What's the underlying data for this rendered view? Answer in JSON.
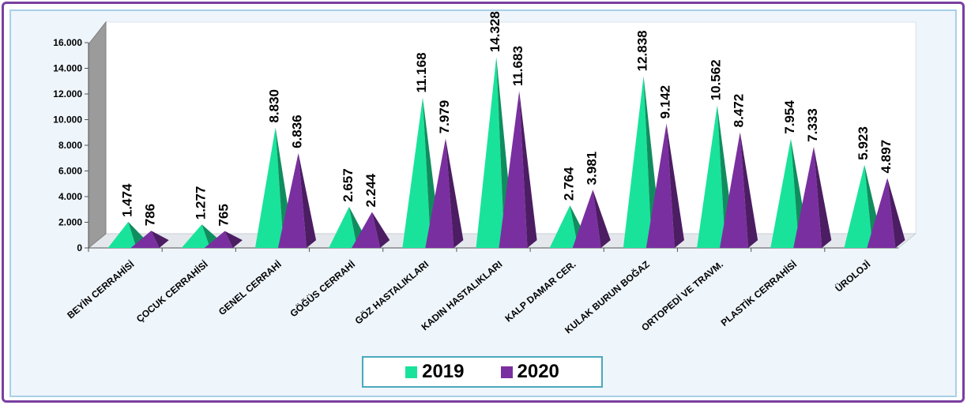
{
  "chart_data": {
    "type": "bar",
    "mark": "pyramid-3d",
    "title": "",
    "xlabel": "",
    "ylabel": "",
    "ylim": [
      0,
      16000
    ],
    "yticks": [
      "0",
      "2.000",
      "4.000",
      "6.000",
      "8.000",
      "10.000",
      "12.000",
      "14.000",
      "16.000"
    ],
    "categories": [
      "BEYİN CERRAHİSİ",
      "ÇOCUK CERRAHİSİ",
      "GENEL CERRAHİ",
      "GÖĞÜS CERRAHİ",
      "GÖZ HASTALIKLARI",
      "KADIN HASTALIKLARI",
      "KALP DAMAR CER.",
      "KULAK BURUN BOĞAZ",
      "ORTOPEDİ VE TRAVM.",
      "PLASTİK CERRAHİSİ",
      "ÜROLOJİ"
    ],
    "series": [
      {
        "name": "2019",
        "color": "#19e39a",
        "values": [
          1474,
          1277,
          8830,
          2657,
          11168,
          14328,
          2764,
          12838,
          10562,
          7954,
          5923
        ],
        "labels": [
          "1.474",
          "1.277",
          "8.830",
          "2.657",
          "11.168",
          "14.328",
          "2.764",
          "12.838",
          "10.562",
          "7.954",
          "5.923"
        ]
      },
      {
        "name": "2020",
        "color": "#7a2fa0",
        "values": [
          786,
          765,
          6836,
          2244,
          7979,
          11683,
          3981,
          9142,
          8472,
          7333,
          4897
        ],
        "labels": [
          "786",
          "765",
          "6.836",
          "2.244",
          "7.979",
          "11.683",
          "3.981",
          "9.142",
          "8.472",
          "7.333",
          "4.897"
        ]
      }
    ],
    "grid": false,
    "legend": "bottom"
  },
  "legend": {
    "items": [
      {
        "label": "2019",
        "color": "#19e39a"
      },
      {
        "label": "2020",
        "color": "#7a2fa0"
      }
    ]
  }
}
